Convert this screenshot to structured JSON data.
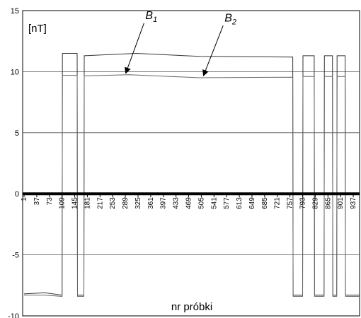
{
  "chart_data": {
    "type": "line",
    "ylabel": "[nT]",
    "xlabel": "nr próbki",
    "ylim": [
      -10,
      15
    ],
    "yticks": [
      -10,
      -5,
      0,
      5,
      10,
      15
    ],
    "xlim": [
      1,
      955
    ],
    "xticks": [
      1,
      37,
      73,
      109,
      145,
      181,
      217,
      253,
      289,
      325,
      361,
      397,
      433,
      469,
      505,
      541,
      577,
      613,
      649,
      685,
      721,
      757,
      793,
      829,
      865,
      901,
      937
    ],
    "grid": "horizontal",
    "series": [
      {
        "name": "B1",
        "color": "#333333",
        "points": [
          [
            1,
            -8.2
          ],
          [
            60,
            -8.1
          ],
          [
            109,
            -8.3
          ],
          [
            110,
            11.5
          ],
          [
            152,
            11.5
          ],
          [
            153,
            -8.3
          ],
          [
            171,
            -8.3
          ],
          [
            172,
            11.3
          ],
          [
            320,
            11.5
          ],
          [
            500,
            11.25
          ],
          [
            765,
            11.2
          ],
          [
            766,
            -8.3
          ],
          [
            793,
            -8.3
          ],
          [
            794,
            11.3
          ],
          [
            826,
            11.3
          ],
          [
            827,
            -8.3
          ],
          [
            854,
            -8.3
          ],
          [
            855,
            11.3
          ],
          [
            878,
            11.3
          ],
          [
            879,
            -8.3
          ],
          [
            890,
            -8.3
          ],
          [
            891,
            11.3
          ],
          [
            914,
            11.3
          ],
          [
            915,
            -8.3
          ],
          [
            955,
            -8.3
          ]
        ]
      },
      {
        "name": "B2",
        "color": "#666666",
        "points": [
          [
            1,
            -8.3
          ],
          [
            60,
            -8.3
          ],
          [
            109,
            -8.4
          ],
          [
            110,
            9.7
          ],
          [
            152,
            9.7
          ],
          [
            153,
            -8.4
          ],
          [
            171,
            -8.4
          ],
          [
            172,
            9.65
          ],
          [
            300,
            9.75
          ],
          [
            500,
            9.5
          ],
          [
            765,
            9.55
          ],
          [
            766,
            -8.4
          ],
          [
            793,
            -8.4
          ],
          [
            794,
            9.6
          ],
          [
            826,
            9.6
          ],
          [
            827,
            -8.4
          ],
          [
            854,
            -8.4
          ],
          [
            855,
            9.6
          ],
          [
            878,
            9.6
          ],
          [
            879,
            -8.4
          ],
          [
            890,
            -8.4
          ],
          [
            891,
            9.6
          ],
          [
            914,
            9.6
          ],
          [
            915,
            -8.4
          ],
          [
            955,
            -8.4
          ]
        ]
      }
    ],
    "annotations": [
      {
        "label": "B",
        "sub": "1",
        "target": [
          290,
          9.75
        ],
        "text_at": [
          350,
          14.2
        ]
      },
      {
        "label": "B",
        "sub": "2",
        "target": [
          511,
          9.55
        ],
        "text_at": [
          575,
          14.0
        ]
      }
    ]
  }
}
